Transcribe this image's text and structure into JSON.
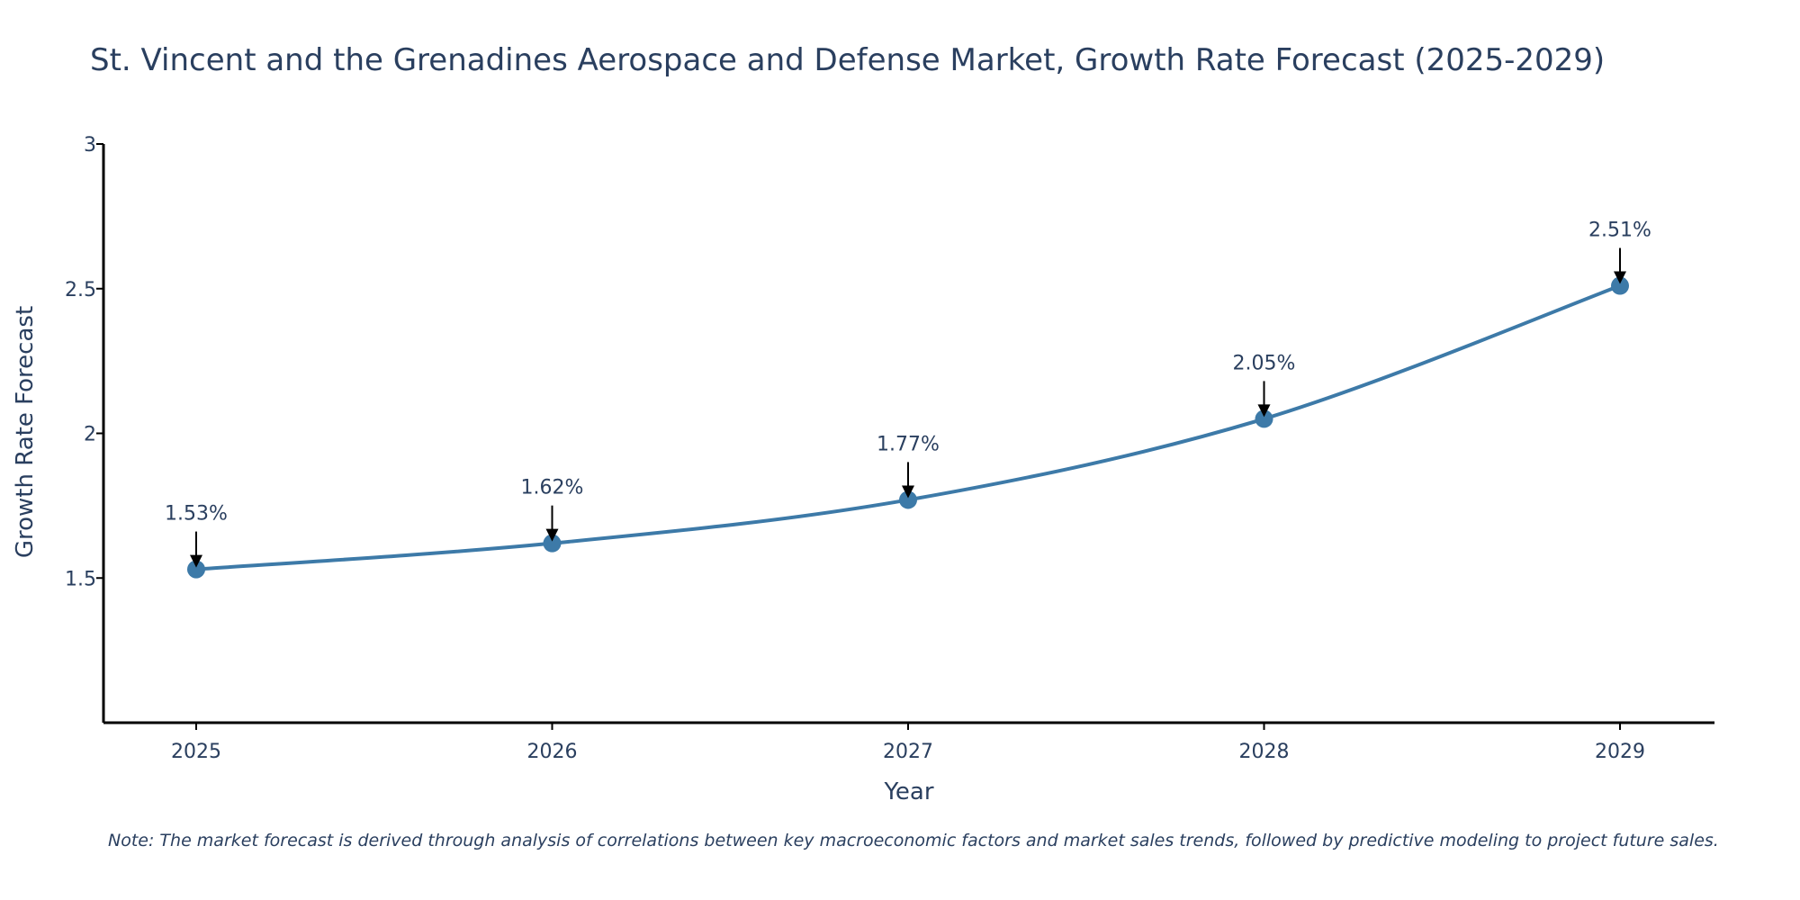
{
  "chart_data": {
    "type": "line",
    "title": "St. Vincent and the Grenadines Aerospace and Defense Market, Growth Rate Forecast (2025-2029)",
    "xlabel": "Year",
    "ylabel": "Growth Rate Forecast",
    "categories": [
      "2025",
      "2026",
      "2027",
      "2028",
      "2029"
    ],
    "values": [
      1.53,
      1.62,
      1.77,
      2.05,
      2.51
    ],
    "data_labels": [
      "1.53%",
      "1.62%",
      "1.77%",
      "2.05%",
      "2.51%"
    ],
    "ylim": [
      1.0,
      3.0
    ],
    "yticks": [
      1.5,
      2,
      2.5,
      3
    ],
    "ytick_labels": [
      "1.5",
      "2",
      "2.5",
      "3"
    ],
    "line_color": "#3d7aa8",
    "marker_color": "#3d7aa8",
    "grid": false,
    "note": "Note: The market forecast is derived through analysis of correlations between key macroeconomic factors and market sales trends, followed by predictive modeling to project future sales."
  }
}
